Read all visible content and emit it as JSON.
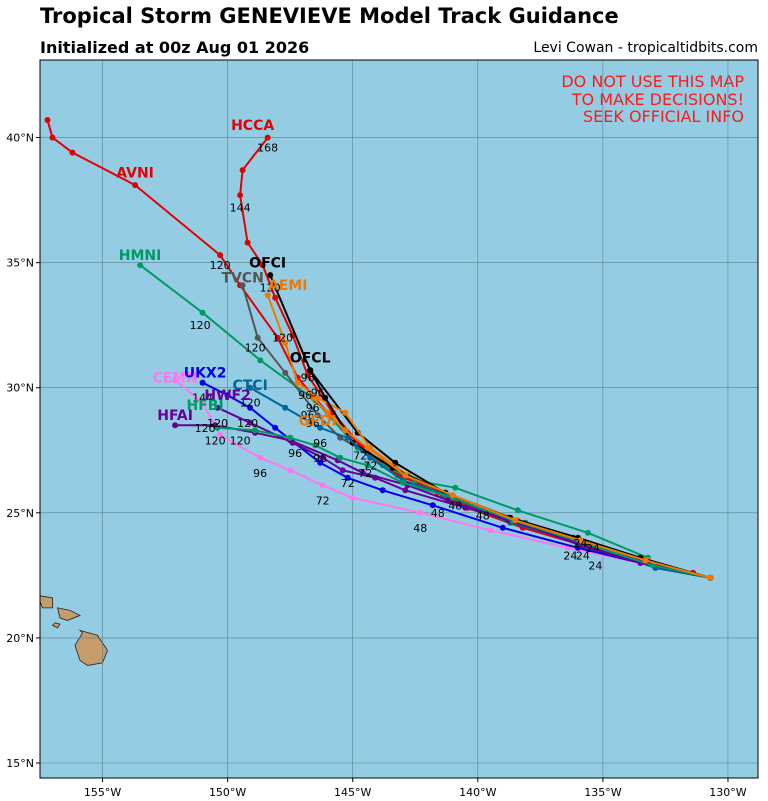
{
  "header": {
    "title": "Tropical Storm GENEVIEVE Model Track Guidance",
    "subtitle": "Initialized at 00z Aug 01 2026",
    "credit": "Levi Cowan - tropicaltidbits.com"
  },
  "warning": [
    "DO NOT USE THIS MAP",
    "TO MAKE DECISIONS!",
    "SEEK OFFICIAL INFO"
  ],
  "map": {
    "ocean_color": "#94cde3",
    "land_color": "#c69c6d",
    "lon_range": [
      -157.5,
      -128.8
    ],
    "lat_range": [
      14.4,
      43.1
    ],
    "lon_ticks": [
      {
        "v": -155,
        "label": "155°W"
      },
      {
        "v": -150,
        "label": "150°W"
      },
      {
        "v": -145,
        "label": "145°W"
      },
      {
        "v": -140,
        "label": "140°W"
      },
      {
        "v": -135,
        "label": "135°W"
      },
      {
        "v": -130,
        "label": "130°W"
      }
    ],
    "lat_ticks": [
      {
        "v": 15,
        "label": "15°N"
      },
      {
        "v": 20,
        "label": "20°N"
      },
      {
        "v": 25,
        "label": "25°N"
      },
      {
        "v": 30,
        "label": "30°N"
      },
      {
        "v": 35,
        "label": "35°N"
      },
      {
        "v": 40,
        "label": "40°N"
      }
    ]
  },
  "chart_data": {
    "type": "scatter",
    "x_unit": "longitude (deg)",
    "y_unit": "latitude (deg)",
    "grid": true,
    "series": [
      {
        "name": "HCCA",
        "color": "#e30000",
        "name_at": [
          -149,
          40.5
        ],
        "points": [
          [
            -130.7,
            22.4
          ],
          [
            -131.4,
            22.6
          ],
          [
            -133.6,
            23.1
          ],
          [
            -135.8,
            23.7
          ],
          [
            -138.2,
            24.5
          ],
          [
            -140.2,
            25.2
          ],
          [
            -141.4,
            25.8
          ],
          [
            -143.2,
            26.5
          ],
          [
            -144.6,
            27.6
          ],
          [
            -145.8,
            29.0
          ],
          [
            -146.8,
            30.5
          ],
          [
            -147.4,
            32.1
          ],
          [
            -148.1,
            33.6
          ],
          [
            -148.6,
            34.9
          ],
          [
            -149.2,
            35.8
          ],
          [
            -149.5,
            37.7
          ],
          [
            -149.4,
            38.7
          ],
          [
            -148.4,
            40.0
          ]
        ],
        "labels": [
          {
            "at": [
              -148.4,
              39.6
            ],
            "text": "168"
          },
          {
            "at": [
              -149.5,
              37.2
            ],
            "text": "144"
          }
        ]
      },
      {
        "name": "AVNI",
        "color": "#e30000",
        "name_at": [
          -153.7,
          38.6
        ],
        "points": [
          [
            -130.7,
            22.4
          ],
          [
            -131.4,
            22.6
          ],
          [
            -133.6,
            23.1
          ],
          [
            -135.8,
            23.7
          ],
          [
            -138.2,
            24.4
          ],
          [
            -140.4,
            25.2
          ],
          [
            -141.6,
            25.8
          ],
          [
            -143.3,
            26.6
          ],
          [
            -144.7,
            27.7
          ],
          [
            -146.0,
            29.0
          ],
          [
            -147.2,
            30.4
          ],
          [
            -148.0,
            32.0
          ],
          [
            -149.5,
            34.1
          ],
          [
            -150.3,
            35.3
          ],
          [
            -153.7,
            38.1
          ],
          [
            -156.2,
            39.4
          ],
          [
            -157.0,
            40.0
          ],
          [
            -157.2,
            40.7
          ]
        ],
        "labels": [
          {
            "at": [
              -150.3,
              34.9
            ],
            "text": "120"
          }
        ]
      },
      {
        "name": "HMNI",
        "color": "#009966",
        "name_at": [
          -153.5,
          35.3
        ],
        "points": [
          [
            -130.7,
            22.4
          ],
          [
            -132.9,
            22.8
          ],
          [
            -133.2,
            23.2
          ],
          [
            -135.6,
            24.2
          ],
          [
            -138.4,
            25.1
          ],
          [
            -140.9,
            26.0
          ],
          [
            -142.5,
            26.3
          ],
          [
            -143.8,
            26.9
          ],
          [
            -144.8,
            27.6
          ],
          [
            -146.5,
            29.5
          ],
          [
            -148.7,
            31.1
          ],
          [
            -151.0,
            33.0
          ],
          [
            -153.5,
            34.9
          ]
        ],
        "labels": [
          {
            "at": [
              -151.1,
              32.5
            ],
            "text": "120"
          }
        ]
      },
      {
        "name": "TVCN",
        "color": "#555555",
        "name_at": [
          -149.4,
          34.4
        ],
        "points": [
          [
            -130.7,
            22.4
          ],
          [
            -132.9,
            22.9
          ],
          [
            -135.7,
            23.6
          ],
          [
            -138.1,
            24.6
          ],
          [
            -141.4,
            25.7
          ],
          [
            -143.3,
            26.8
          ],
          [
            -144.6,
            27.5
          ],
          [
            -145.5,
            28.0
          ],
          [
            -146.4,
            28.9
          ],
          [
            -147.7,
            30.6
          ],
          [
            -148.8,
            32.0
          ],
          [
            -149.4,
            34.1
          ]
        ],
        "labels": [
          {
            "at": [
              -148.9,
              31.6
            ],
            "text": "120"
          }
        ]
      },
      {
        "name": "OFCI",
        "color": "#000000",
        "name_at": [
          -148.4,
          35.0
        ],
        "points": [
          [
            -130.7,
            22.4
          ],
          [
            -133.5,
            23.2
          ],
          [
            -136.2,
            24.0
          ],
          [
            -138.8,
            24.8
          ],
          [
            -141.3,
            25.8
          ],
          [
            -143.3,
            27.0
          ],
          [
            -144.8,
            28.2
          ],
          [
            -146.7,
            30.7
          ],
          [
            -148.3,
            34.5
          ]
        ],
        "labels": [
          {
            "at": [
              -148.3,
              34.0
            ],
            "text": "120"
          }
        ]
      },
      {
        "name": "AEMI",
        "color": "#f07800",
        "name_at": [
          -147.6,
          34.1
        ],
        "points": [
          [
            -130.7,
            22.4
          ],
          [
            -133.2,
            23.1
          ],
          [
            -135.9,
            23.9
          ],
          [
            -138.4,
            24.7
          ],
          [
            -141.0,
            25.7
          ],
          [
            -142.8,
            26.5
          ],
          [
            -144.3,
            27.6
          ],
          [
            -145.3,
            29.0
          ],
          [
            -146.4,
            29.6
          ],
          [
            -147.2,
            30.2
          ],
          [
            -147.7,
            31.8
          ],
          [
            -148.4,
            33.7
          ]
        ],
        "labels": [
          {
            "at": [
              -147.8,
              32.0
            ],
            "text": "120"
          }
        ]
      },
      {
        "name": "OFCL",
        "color": "#000000",
        "name_at": [
          -146.7,
          31.2
        ],
        "points": [
          [
            -130.7,
            22.4
          ],
          [
            -133.5,
            23.2
          ],
          [
            -136.0,
            24.0
          ],
          [
            -138.7,
            24.8
          ],
          [
            -141.3,
            25.8
          ],
          [
            -143.4,
            26.8
          ],
          [
            -145.0,
            27.8
          ],
          [
            -146.1,
            29.6
          ],
          [
            -146.7,
            30.7
          ]
        ],
        "labels": [
          {
            "at": [
              -146.8,
              30.4
            ],
            "text": "96"
          }
        ]
      },
      {
        "name": "CEMN",
        "color": "#ff77ee",
        "name_at": [
          -152.1,
          30.4
        ],
        "points": [
          [
            -130.7,
            22.4
          ],
          [
            -133.5,
            23.0
          ],
          [
            -136.4,
            23.6
          ],
          [
            -139.5,
            24.3
          ],
          [
            -142.3,
            25.0
          ],
          [
            -145.0,
            25.6
          ],
          [
            -146.2,
            26.1
          ],
          [
            -147.5,
            26.7
          ],
          [
            -148.7,
            27.2
          ],
          [
            -150.3,
            28.1
          ],
          [
            -151.0,
            29.4
          ],
          [
            -152.1,
            30.3
          ]
        ],
        "labels": [
          {
            "at": [
              -151.0,
              29.6
            ],
            "text": "144"
          },
          {
            "at": [
              -148.7,
              26.6
            ],
            "text": "96"
          },
          {
            "at": [
              -146.2,
              25.5
            ],
            "text": "72"
          },
          {
            "at": [
              -142.3,
              24.4
            ],
            "text": "48"
          }
        ]
      },
      {
        "name": "UKX2",
        "color": "#0000ee",
        "name_at": [
          -150.9,
          30.6
        ],
        "points": [
          [
            -130.7,
            22.4
          ],
          [
            -133.5,
            23.0
          ],
          [
            -136.0,
            23.6
          ],
          [
            -139.0,
            24.4
          ],
          [
            -141.8,
            25.3
          ],
          [
            -143.8,
            25.9
          ],
          [
            -145.2,
            26.4
          ],
          [
            -146.3,
            27.0
          ],
          [
            -148.1,
            28.4
          ],
          [
            -149.1,
            29.2
          ],
          [
            -150.0,
            29.7
          ],
          [
            -151.0,
            30.2
          ]
        ],
        "labels": [
          {
            "at": [
              -149.2,
              28.6
            ],
            "text": "120"
          }
        ]
      },
      {
        "name": "CTCI",
        "color": "#006699",
        "name_at": [
          -149.1,
          30.1
        ],
        "points": [
          [
            -130.7,
            22.4
          ],
          [
            -132.9,
            22.8
          ],
          [
            -135.8,
            23.8
          ],
          [
            -138.7,
            24.6
          ],
          [
            -141.2,
            25.7
          ],
          [
            -143.0,
            26.3
          ],
          [
            -144.3,
            27.2
          ],
          [
            -145.2,
            28.0
          ],
          [
            -146.3,
            28.4
          ],
          [
            -147.7,
            29.2
          ],
          [
            -149.1,
            30.0
          ]
        ],
        "labels": [
          {
            "at": [
              -149.1,
              29.4
            ],
            "text": "120"
          }
        ]
      },
      {
        "name": "HWF2",
        "color": "#660099",
        "name_at": [
          -150.0,
          29.7
        ],
        "points": [
          [
            -130.7,
            22.4
          ],
          [
            -133.5,
            23.0
          ],
          [
            -135.9,
            23.7
          ],
          [
            -138.6,
            24.7
          ],
          [
            -140.5,
            25.2
          ],
          [
            -142.9,
            25.9
          ],
          [
            -144.1,
            26.4
          ],
          [
            -145.4,
            26.7
          ],
          [
            -146.2,
            27.2
          ],
          [
            -147.4,
            27.8
          ],
          [
            -149.1,
            28.6
          ],
          [
            -150.4,
            29.2
          ]
        ],
        "labels": [
          {
            "at": [
              -150.4,
              28.6
            ],
            "text": "120"
          }
        ]
      },
      {
        "name": "HFAI",
        "color": "#660099",
        "name_at": [
          -152.1,
          28.9
        ],
        "points": [
          [
            -130.7,
            22.4
          ],
          [
            -133.2,
            23.0
          ],
          [
            -135.9,
            23.8
          ],
          [
            -138.8,
            24.7
          ],
          [
            -141.2,
            25.5
          ],
          [
            -142.8,
            26.1
          ],
          [
            -144.6,
            26.6
          ],
          [
            -145.6,
            27.1
          ],
          [
            -147.5,
            27.9
          ],
          [
            -148.9,
            28.2
          ],
          [
            -150.5,
            28.5
          ],
          [
            -152.1,
            28.5
          ]
        ],
        "labels": [
          {
            "at": [
              -150.5,
              27.9
            ],
            "text": "120"
          },
          {
            "at": [
              -149.5,
              27.9
            ],
            "text": "120"
          }
        ]
      },
      {
        "name": "HFBI",
        "color": "#009966",
        "name_at": [
          -150.9,
          29.3
        ],
        "points": [
          [
            -130.7,
            22.4
          ],
          [
            -133.0,
            22.9
          ],
          [
            -135.8,
            23.8
          ],
          [
            -138.6,
            24.7
          ],
          [
            -141.0,
            25.6
          ],
          [
            -143.0,
            26.2
          ],
          [
            -144.4,
            26.9
          ],
          [
            -145.5,
            27.2
          ],
          [
            -146.5,
            27.7
          ],
          [
            -147.5,
            28.0
          ],
          [
            -148.9,
            28.3
          ],
          [
            -150.4,
            28.4
          ]
        ],
        "labels": [
          {
            "at": [
              -150.9,
              28.4
            ],
            "text": "120"
          }
        ]
      },
      {
        "name": "GFDI",
        "color": "#f07800",
        "name_at": [
          -146.4,
          28.7
        ],
        "points": [
          [
            -130.7,
            22.4
          ],
          [
            -133.3,
            23.1
          ],
          [
            -135.9,
            23.9
          ],
          [
            -138.5,
            24.7
          ],
          [
            -141.0,
            25.7
          ],
          [
            -142.9,
            26.5
          ],
          [
            -144.4,
            27.6
          ],
          [
            -145.3,
            28.3
          ],
          [
            -146.0,
            29.0
          ],
          [
            -146.6,
            29.6
          ]
        ],
        "labels": [
          {
            "at": [
              -146.6,
              29.2
            ],
            "text": "96"
          }
        ]
      }
    ]
  },
  "extra_labels": [
    {
      "at": [
        -140.9,
        25.3
      ],
      "text": "48"
    },
    {
      "at": [
        -141.6,
        25.0
      ],
      "text": "48"
    },
    {
      "at": [
        -139.8,
        24.9
      ],
      "text": "48"
    },
    {
      "at": [
        -144.7,
        27.3
      ],
      "text": "72"
    },
    {
      "at": [
        -144.3,
        26.9
      ],
      "text": "72"
    },
    {
      "at": [
        -144.5,
        26.6
      ],
      "text": "72"
    },
    {
      "at": [
        -145.2,
        26.2
      ],
      "text": "72"
    },
    {
      "at": [
        -147.3,
        27.4
      ],
      "text": "96"
    },
    {
      "at": [
        -146.3,
        27.2
      ],
      "text": "96"
    },
    {
      "at": [
        -146.3,
        27.8
      ],
      "text": "96"
    },
    {
      "at": [
        -146.9,
        29.7
      ],
      "text": "96"
    },
    {
      "at": [
        -146.4,
        29.8
      ],
      "text": "96"
    },
    {
      "at": [
        -146.8,
        28.9
      ],
      "text": "96"
    },
    {
      "at": [
        -146.6,
        28.6
      ],
      "text": "96"
    },
    {
      "at": [
        -135.4,
        23.6
      ],
      "text": "24"
    },
    {
      "at": [
        -135.8,
        23.3
      ],
      "text": "24"
    },
    {
      "at": [
        -136.3,
        23.3
      ],
      "text": "24"
    },
    {
      "at": [
        -135.3,
        22.9
      ],
      "text": "24"
    },
    {
      "at": [
        -135.9,
        23.8
      ],
      "text": "24"
    }
  ],
  "islands": [
    [
      [
        -157.6,
        21.7
      ],
      [
        -157.0,
        21.6
      ],
      [
        -157.0,
        21.2
      ],
      [
        -157.4,
        21.2
      ]
    ],
    [
      [
        -156.8,
        21.2
      ],
      [
        -156.3,
        21.1
      ],
      [
        -155.9,
        20.9
      ],
      [
        -156.4,
        20.7
      ],
      [
        -156.7,
        20.8
      ]
    ],
    [
      [
        -156.9,
        20.6
      ],
      [
        -156.7,
        20.55
      ],
      [
        -156.8,
        20.4
      ],
      [
        -157.0,
        20.5
      ]
    ],
    [
      [
        -155.9,
        20.3
      ],
      [
        -155.2,
        20.1
      ],
      [
        -154.8,
        19.5
      ],
      [
        -155.0,
        19.0
      ],
      [
        -155.6,
        18.9
      ],
      [
        -155.9,
        19.1
      ],
      [
        -156.1,
        19.7
      ],
      [
        -155.8,
        20.2
      ]
    ]
  ]
}
